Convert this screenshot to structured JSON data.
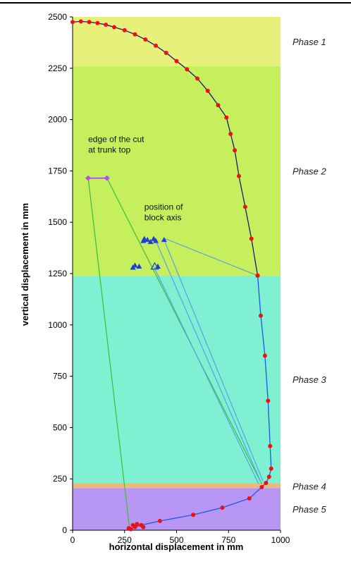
{
  "chart_data": {
    "type": "line",
    "xlabel": "horizontal displacement in mm",
    "ylabel": "vertical displacement in mm",
    "xlim": [
      0,
      1000
    ],
    "ylim": [
      0,
      2500
    ],
    "xticks": [
      0,
      250,
      500,
      750,
      1000
    ],
    "yticks": [
      0,
      250,
      500,
      750,
      1000,
      1250,
      1500,
      1750,
      2000,
      2250,
      2500
    ],
    "grid": false,
    "legend": "none",
    "phase_bands": [
      {
        "label": "Phase 1",
        "y_from": 2260,
        "y_to": 2500,
        "color": "#e8f07c"
      },
      {
        "label": "Phase 2",
        "y_from": 1240,
        "y_to": 2260,
        "color": "#c6ef5e"
      },
      {
        "label": "Phase 3",
        "y_from": 230,
        "y_to": 1240,
        "color": "#7ff0d2"
      },
      {
        "label": "Phase 4",
        "y_from": 205,
        "y_to": 230,
        "color": "#f0b879"
      },
      {
        "label": "Phase 5",
        "y_from": 0,
        "y_to": 205,
        "color": "#b896f3"
      }
    ],
    "series": [
      {
        "color": "#1a1a6e",
        "marker": "circle",
        "marker_color": "#ee1111",
        "x": [
          0,
          40,
          80,
          120,
          160,
          200,
          250,
          300,
          350,
          400,
          450,
          500,
          550,
          600,
          650,
          700,
          740,
          760,
          780,
          800,
          830,
          860,
          890
        ],
        "y": [
          2475,
          2478,
          2475,
          2470,
          2462,
          2450,
          2435,
          2415,
          2390,
          2360,
          2325,
          2285,
          2245,
          2200,
          2140,
          2070,
          2010,
          1930,
          1850,
          1725,
          1575,
          1420,
          1240
        ]
      },
      {
        "color": "#2255ee",
        "marker": "circle",
        "marker_color": "#ee1111",
        "x": [
          890,
          905,
          925,
          940,
          950,
          955,
          945,
          930,
          910,
          850,
          720,
          580,
          420,
          330,
          300,
          280
        ],
        "y": [
          1240,
          1045,
          850,
          630,
          410,
          300,
          260,
          230,
          210,
          155,
          110,
          75,
          45,
          25,
          15,
          5
        ]
      }
    ],
    "extra_points": {
      "red_bottom": {
        "x": [
          270,
          290,
          310,
          340
        ],
        "y": [
          10,
          25,
          30,
          15
        ]
      },
      "blue_axis_tris": {
        "x": [
          290,
          300,
          320,
          340,
          345,
          360,
          375,
          390,
          400,
          410,
          440
        ],
        "y": [
          1280,
          1290,
          1285,
          1410,
          1420,
          1415,
          1405,
          1420,
          1410,
          1285,
          1415
        ]
      },
      "blue_open_tri": {
        "x": [
          395
        ],
        "y": [
          1285
        ]
      },
      "purple_cut": {
        "x": [
          75,
          165
        ],
        "y": [
          1715,
          1715
        ]
      }
    },
    "annotations": [
      {
        "text": "edge of the cut\nat trunk top",
        "x": 75,
        "y": 1890
      },
      {
        "text": "position of\nblock axis",
        "x": 345,
        "y": 1560
      }
    ],
    "connectors": [
      {
        "color": "#3bbd3b",
        "from": [
          75,
          1715
        ],
        "to": [
          275,
          0
        ]
      },
      {
        "color": "#3bbd3b",
        "from": [
          165,
          1715
        ],
        "to": [
          910,
          225
        ]
      },
      {
        "color": "#5aa0e6",
        "from": [
          445,
          1420
        ],
        "to": [
          890,
          1240
        ]
      },
      {
        "color": "#5aa0e6",
        "from": [
          390,
          1285
        ],
        "to": [
          895,
          225
        ]
      },
      {
        "color": "#5aa0e6",
        "from": [
          400,
          1410
        ],
        "to": [
          905,
          235
        ]
      },
      {
        "color": "#5aa0e6",
        "from": [
          440,
          1415
        ],
        "to": [
          915,
          240
        ]
      }
    ]
  }
}
